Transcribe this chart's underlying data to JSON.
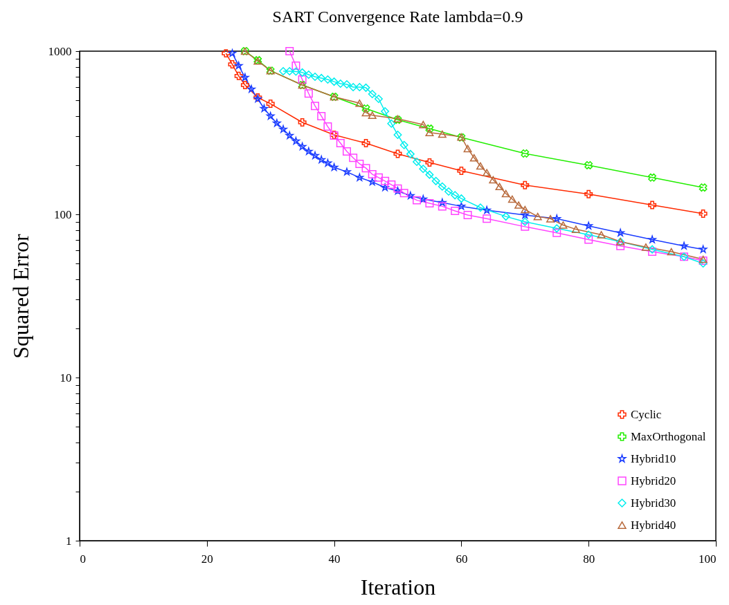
{
  "chart_data": {
    "type": "line",
    "title": "SART Convergence Rate lambda=0.9",
    "xlabel": "Iteration",
    "ylabel": "Squared Error",
    "log": "y",
    "grid": false,
    "legend": "bottom right",
    "xlim": [
      0,
      100
    ],
    "xticks": [
      0,
      20,
      40,
      60,
      80,
      100
    ],
    "ylim": [
      1,
      1000
    ],
    "yticks": [
      1,
      {
        "value": 2,
        "label": null
      },
      {
        "value": 3,
        "label": null
      },
      {
        "value": 4,
        "label": null
      },
      {
        "value": 5,
        "label": null
      },
      {
        "value": 6,
        "label": null
      },
      {
        "value": 7,
        "label": null
      },
      {
        "value": 8,
        "label": null
      },
      {
        "value": 9,
        "label": null
      },
      10,
      {
        "value": 20,
        "label": null
      },
      {
        "value": 30,
        "label": null
      },
      {
        "value": 40,
        "label": null
      },
      {
        "value": 50,
        "label": null
      },
      {
        "value": 60,
        "label": null
      },
      {
        "value": 70,
        "label": null
      },
      {
        "value": 80,
        "label": null
      },
      {
        "value": 90,
        "label": null
      },
      100,
      {
        "value": 200,
        "label": null
      },
      {
        "value": 300,
        "label": null
      },
      {
        "value": 400,
        "label": null
      },
      {
        "value": 500,
        "label": null
      },
      {
        "value": 600,
        "label": null
      },
      {
        "value": 700,
        "label": null
      },
      {
        "value": 800,
        "label": null
      },
      {
        "value": 900,
        "label": null
      },
      1000
    ],
    "series": [
      {
        "name": "Cyclic",
        "color": "#ff2a00",
        "marker": "plus",
        "x": [
          23,
          24,
          25,
          26,
          28,
          30,
          35,
          40,
          45,
          50,
          55,
          60,
          70,
          80,
          90,
          98
        ],
        "values": [
          970,
          830,
          705,
          620,
          520,
          476,
          366,
          307,
          273,
          235,
          208,
          185,
          151,
          133,
          114,
          101
        ]
      },
      {
        "name": "MaxOrthogonal",
        "color": "#22ee00",
        "marker": "cross",
        "x": [
          26,
          28,
          30,
          35,
          40,
          45,
          50,
          55,
          60,
          70,
          80,
          90,
          98
        ],
        "values": [
          1000,
          880,
          760,
          620,
          525,
          445,
          380,
          335,
          296,
          236,
          200,
          168,
          146
        ]
      },
      {
        "name": "Hybrid10",
        "color": "#1a3cff",
        "marker": "star",
        "x": [
          24,
          25,
          26,
          27,
          28,
          29,
          30,
          31,
          32,
          33,
          34,
          35,
          36,
          37,
          38,
          39,
          40,
          42,
          44,
          46,
          48,
          50,
          52,
          54,
          57,
          60,
          64,
          70,
          75,
          80,
          85,
          90,
          95,
          98
        ],
        "values": [
          970,
          815,
          690,
          585,
          510,
          445,
          400,
          362,
          332,
          304,
          281,
          260,
          243,
          229,
          216,
          206,
          194,
          182,
          168,
          158,
          146,
          139,
          130,
          124,
          118,
          112,
          106,
          99,
          94,
          85,
          77,
          70,
          64,
          61
        ]
      },
      {
        "name": "Hybrid20",
        "color": "#ff44ff",
        "marker": "square",
        "x": [
          33,
          34,
          35,
          36,
          37,
          38,
          39,
          40,
          41,
          42,
          43,
          44,
          45,
          46,
          47,
          48,
          49,
          50,
          51,
          53,
          55,
          57,
          59,
          61,
          64,
          70,
          75,
          80,
          85,
          90,
          95,
          98
        ],
        "values": [
          1000,
          815,
          670,
          550,
          462,
          400,
          345,
          304,
          273,
          243,
          222,
          204,
          192,
          176,
          168,
          160,
          152,
          144,
          135,
          122,
          117,
          112,
          105,
          99,
          94,
          84,
          77,
          70,
          64,
          59,
          55,
          52
        ]
      },
      {
        "name": "Hybrid30",
        "color": "#00eeee",
        "marker": "diamond",
        "x": [
          32,
          33,
          34,
          35,
          36,
          37,
          38,
          39,
          40,
          41,
          42,
          43,
          44,
          45,
          46,
          47,
          48,
          49,
          50,
          51,
          52,
          53,
          54,
          55,
          56,
          57,
          58,
          59,
          60,
          63,
          67,
          70,
          75,
          80,
          85,
          90,
          95,
          98
        ],
        "values": [
          754,
          754,
          750,
          740,
          718,
          697,
          684,
          670,
          650,
          632,
          626,
          602,
          602,
          597,
          546,
          510,
          428,
          360,
          307,
          266,
          234,
          210,
          190,
          175,
          160,
          148,
          138,
          131,
          125,
          110,
          97,
          90,
          82,
          75,
          68,
          61,
          55,
          50
        ]
      },
      {
        "name": "Hybrid40",
        "color": "#b86a3c",
        "marker": "triangle",
        "x": [
          26,
          28,
          30,
          35,
          40,
          44,
          45,
          46,
          50,
          54,
          55,
          57,
          60,
          61,
          62,
          63,
          64,
          65,
          66,
          67,
          68,
          69,
          70,
          72,
          74,
          76,
          78,
          82,
          85,
          89,
          93,
          98
        ],
        "values": [
          1000,
          870,
          760,
          620,
          525,
          480,
          420,
          405,
          385,
          355,
          317,
          310,
          298,
          253,
          222,
          198,
          180,
          163,
          148,
          134,
          124,
          114,
          107,
          97,
          94,
          86,
          81,
          75,
          68,
          63,
          59,
          53
        ]
      }
    ]
  }
}
